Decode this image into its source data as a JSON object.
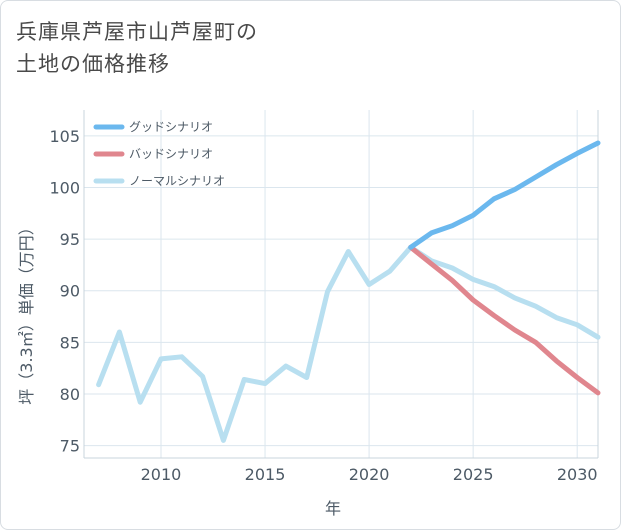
{
  "title": {
    "line1": "兵庫県芦屋市山芦屋町の",
    "line2": "土地の価格推移"
  },
  "chart_data": {
    "type": "line",
    "xlabel": "年",
    "ylabel": "坪（3.3㎡）単価（万円）",
    "xlim": [
      2006.3,
      2031
    ],
    "ylim": [
      73.8,
      107.5
    ],
    "x_ticks": [
      2010,
      2015,
      2020,
      2025,
      2030
    ],
    "y_ticks": [
      75,
      80,
      85,
      90,
      95,
      100,
      105
    ],
    "grid": true,
    "legend_position": "top-left",
    "series": [
      {
        "name": "グッドシナリオ",
        "color": "#6bb8ee",
        "x": [
          2022,
          2023,
          2024,
          2025,
          2026,
          2027,
          2028,
          2029,
          2030,
          2031
        ],
        "y": [
          94.2,
          95.6,
          96.3,
          97.3,
          98.9,
          99.8,
          101.0,
          102.2,
          103.3,
          104.3
        ]
      },
      {
        "name": "バッドシナリオ",
        "color": "#e0868e",
        "x": [
          2022,
          2023,
          2024,
          2025,
          2026,
          2027,
          2028,
          2029,
          2030,
          2031
        ],
        "y": [
          94.2,
          92.6,
          91.0,
          89.1,
          87.6,
          86.2,
          85.0,
          83.2,
          81.6,
          80.1
        ]
      },
      {
        "name": "ノーマルシナリオ",
        "color": "#b8dff0",
        "x": [
          2007,
          2008,
          2009,
          2010,
          2011,
          2012,
          2013,
          2014,
          2015,
          2016,
          2017,
          2018,
          2019,
          2020,
          2021,
          2022,
          2023,
          2024,
          2025,
          2026,
          2027,
          2028,
          2029,
          2030,
          2031
        ],
        "y": [
          80.9,
          86.0,
          79.2,
          83.4,
          83.6,
          81.7,
          75.5,
          81.4,
          81.0,
          82.7,
          81.6,
          89.9,
          93.8,
          90.6,
          91.9,
          94.2,
          92.9,
          92.2,
          91.1,
          90.4,
          89.3,
          88.5,
          87.4,
          86.7,
          85.5
        ]
      }
    ]
  }
}
